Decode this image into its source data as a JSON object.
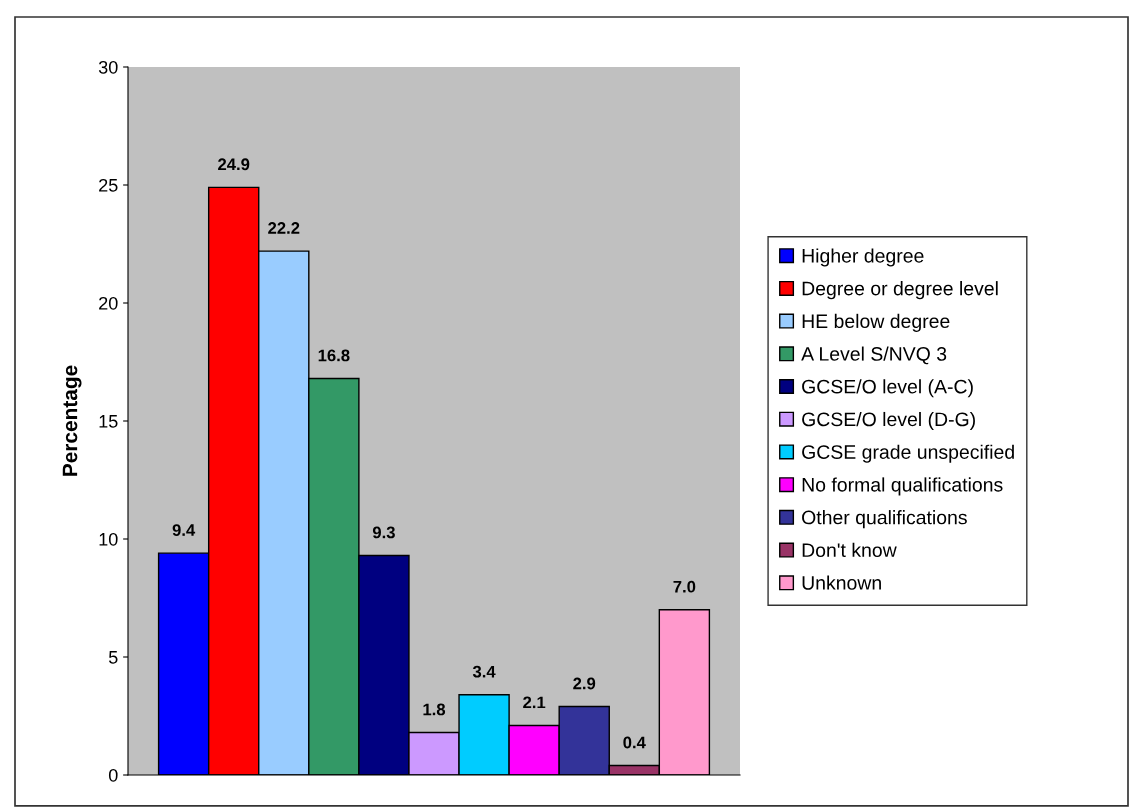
{
  "chart_data": {
    "type": "bar",
    "ylabel": "Percentage",
    "categories": [
      null
    ],
    "ylim": [
      0,
      30
    ],
    "yticks": [
      0,
      5,
      10,
      15,
      20,
      25,
      30
    ],
    "grid": false,
    "legend": "right",
    "series": [
      {
        "name": "Higher degree",
        "color": "#0000ff",
        "values": [
          9.4
        ],
        "value_labels": [
          "9.4"
        ]
      },
      {
        "name": "Degree or degree level",
        "color": "#ff0000",
        "values": [
          24.9
        ],
        "value_labels": [
          "24.9"
        ]
      },
      {
        "name": "HE below degree",
        "color": "#99ccff",
        "values": [
          22.2
        ],
        "value_labels": [
          "22.2"
        ]
      },
      {
        "name": "A Level S/NVQ 3",
        "color": "#339966",
        "values": [
          16.8
        ],
        "value_labels": [
          "16.8"
        ]
      },
      {
        "name": "GCSE/O level (A-C)",
        "color": "#000080",
        "values": [
          9.3
        ],
        "value_labels": [
          "9.3"
        ]
      },
      {
        "name": "GCSE/O level (D-G)",
        "color": "#cc99ff",
        "values": [
          1.8
        ],
        "value_labels": [
          "1.8"
        ]
      },
      {
        "name": "GCSE grade unspecified",
        "color": "#00ccff",
        "values": [
          3.4
        ],
        "value_labels": [
          "3.4"
        ]
      },
      {
        "name": "No formal qualifications",
        "color": "#ff00ff",
        "values": [
          2.1
        ],
        "value_labels": [
          "2.1"
        ]
      },
      {
        "name": "Other qualifications",
        "color": "#333399",
        "values": [
          2.9
        ],
        "value_labels": [
          "2.9"
        ]
      },
      {
        "name": "Don't know",
        "color": "#993366",
        "values": [
          0.4
        ],
        "value_labels": [
          "0.4"
        ]
      },
      {
        "name": "Unknown",
        "color": "#ff99cc",
        "values": [
          7.0
        ],
        "value_labels": [
          "7.0"
        ]
      }
    ]
  }
}
